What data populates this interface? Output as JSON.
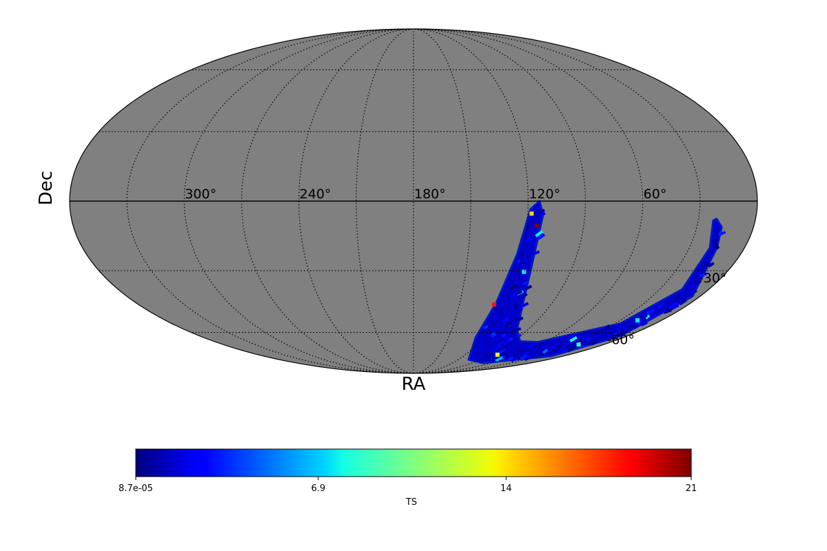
{
  "chart_data": {
    "type": "heatmap",
    "projection": "mollweide",
    "xlabel": "RA",
    "ylabel": "Dec",
    "background_color": "#808080",
    "colormap": "jet",
    "graticule": {
      "ra_step_deg": 30,
      "dec_lines_deg": [
        -60,
        -30,
        30,
        60
      ],
      "style": "dotted"
    },
    "ra_tick_labels": [
      {
        "ra": 300,
        "text": "300°"
      },
      {
        "ra": 240,
        "text": "240°"
      },
      {
        "ra": 180,
        "text": "180°"
      },
      {
        "ra": 120,
        "text": "120°"
      },
      {
        "ra": 60,
        "text": "60°"
      }
    ],
    "dec_tick_labels": [
      {
        "dec": -30,
        "text": "-30°"
      },
      {
        "dec": -60,
        "text": "-60°"
      }
    ],
    "coverage_region_ra_dec": [
      [
        114,
        0
      ],
      [
        112,
        -6
      ],
      [
        113,
        -30
      ],
      [
        98,
        -59
      ],
      [
        84,
        -65
      ],
      [
        67,
        -65.5
      ],
      [
        26,
        -55.3
      ],
      [
        16.2,
        -38.5
      ],
      [
        18.8,
        -20
      ],
      [
        22.1,
        -8.2
      ],
      [
        20.5,
        -7.5
      ],
      [
        16.8,
        -11.1
      ],
      [
        15,
        -20
      ],
      [
        4.8,
        -41.7
      ],
      [
        5.8,
        -62
      ],
      [
        14.6,
        -74.3
      ],
      [
        74,
        -79.3
      ],
      [
        106,
        -76.8
      ],
      [
        126.7,
        -62.9
      ],
      [
        126.3,
        -45
      ],
      [
        123,
        -23
      ],
      [
        118.7,
        -3.5
      ]
    ],
    "typical_ts": 1.5,
    "hotspots": [
      {
        "ra": 114.8,
        "dec": -10.5,
        "ts": 21
      },
      {
        "ra": 127.2,
        "dec": -45.7,
        "ts": 18
      },
      {
        "ra": 118,
        "dec": -5.3,
        "ts": 14
      },
      {
        "ra": 116.6,
        "dec": -30.5,
        "ts": 8
      },
      {
        "ra": 82.6,
        "dec": -73.4,
        "ts": 13
      },
      {
        "ra": 24,
        "dec": -66.9,
        "ts": 9
      },
      {
        "ra": 17.5,
        "dec": -53.6,
        "ts": 8
      }
    ],
    "colorbar": {
      "label": "TS",
      "min": 8.7e-05,
      "max": 21,
      "ticks": [
        {
          "value": 8.7e-05,
          "text": "8.7e-05"
        },
        {
          "value": 6.9,
          "text": "6.9"
        },
        {
          "value": 14,
          "text": "14"
        },
        {
          "value": 21,
          "text": "21"
        }
      ]
    }
  }
}
